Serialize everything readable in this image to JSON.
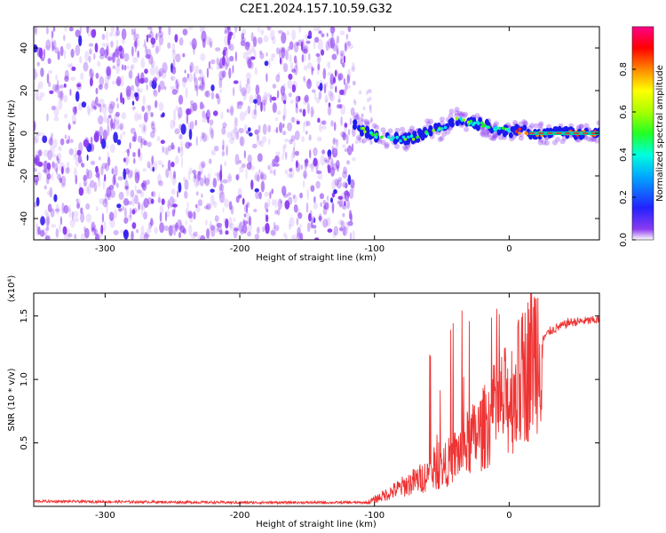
{
  "title": "C2E1.2024.157.10.59.G32",
  "colors": {
    "snr_line": "#ee3333",
    "low_amp": "#8c3cf0",
    "axis": "#000000"
  },
  "chart_data": [
    {
      "type": "heatmap",
      "xlabel": "Height of straight line (km)",
      "ylabel": "Frequency (Hz)",
      "xlim": [
        -353,
        67
      ],
      "ylim": [
        -50,
        50
      ],
      "xticks": [
        -300,
        -200,
        -100,
        0
      ],
      "yticks": [
        -40,
        -20,
        0,
        20,
        40
      ],
      "colorbar": {
        "label": "Normalized spectral amplitude",
        "range": [
          0,
          1
        ],
        "ticks": [
          "0.0",
          "0.2",
          "0.4",
          "0.6",
          "0.8"
        ],
        "colormap": "rainbow"
      },
      "noise_region_x": [
        -353,
        -115
      ],
      "signal_track": {
        "x": [
          -115,
          -110,
          -100,
          -90,
          -80,
          -70,
          -60,
          -50,
          -40,
          -30,
          -20,
          -10,
          0,
          10,
          20,
          67
        ],
        "freq": [
          4,
          2,
          -1,
          -2,
          -3,
          -2,
          1,
          2,
          7,
          5,
          4,
          2,
          1,
          1,
          0,
          0
        ]
      }
    },
    {
      "type": "line",
      "xlabel": "Height of straight line (km)",
      "ylabel": "SNR (10 * v/v)",
      "y_multiplier": "(x10⁴)",
      "xlim": [
        -353,
        67
      ],
      "ylim": [
        0.0,
        1.68
      ],
      "xticks": [
        -300,
        -200,
        -100,
        0
      ],
      "yticks": [
        "0.5",
        "1.0",
        "1.5"
      ],
      "trend": {
        "x": [
          -353,
          -200,
          -105,
          -90,
          -70,
          -50,
          -35,
          -20,
          -10,
          0,
          10,
          20,
          30,
          45,
          67
        ],
        "y": [
          0.04,
          0.03,
          0.03,
          0.1,
          0.2,
          0.3,
          0.45,
          0.6,
          0.75,
          0.85,
          1.0,
          1.25,
          1.38,
          1.45,
          1.47
        ]
      }
    }
  ]
}
